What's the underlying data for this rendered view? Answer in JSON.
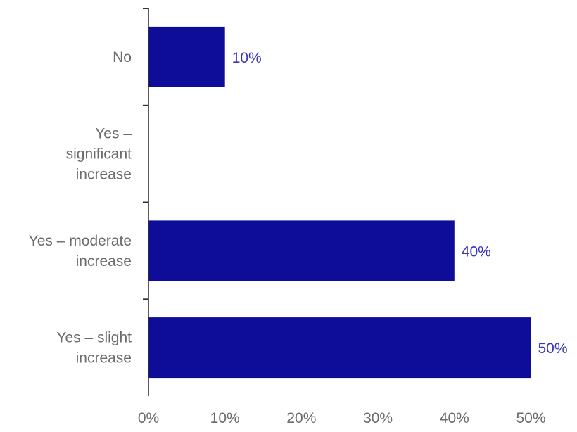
{
  "chart_data": {
    "type": "bar",
    "orientation": "horizontal",
    "title": "",
    "xlabel": "",
    "ylabel": "",
    "categories": [
      "No",
      "Yes – significant increase",
      "Yes – moderate increase",
      "Yes – slight increase"
    ],
    "category_lines": [
      [
        "No"
      ],
      [
        "Yes –",
        "significant",
        "increase"
      ],
      [
        "Yes – moderate",
        "increase"
      ],
      [
        "Yes – slight",
        "increase"
      ]
    ],
    "values": [
      10,
      0,
      40,
      50
    ],
    "value_labels": [
      "10%",
      "",
      "40%",
      "50%"
    ],
    "xlim": [
      0,
      55
    ],
    "x_ticks": [
      0,
      10,
      20,
      30,
      40,
      50
    ],
    "x_tick_labels": [
      "0%",
      "10%",
      "20%",
      "30%",
      "40%",
      "50%"
    ],
    "grid": false,
    "legend": "none",
    "colors": {
      "bar": "#0d0d99",
      "value_label": "#3a35c0",
      "axis": "#333333",
      "text": "#6b6b6b"
    }
  }
}
